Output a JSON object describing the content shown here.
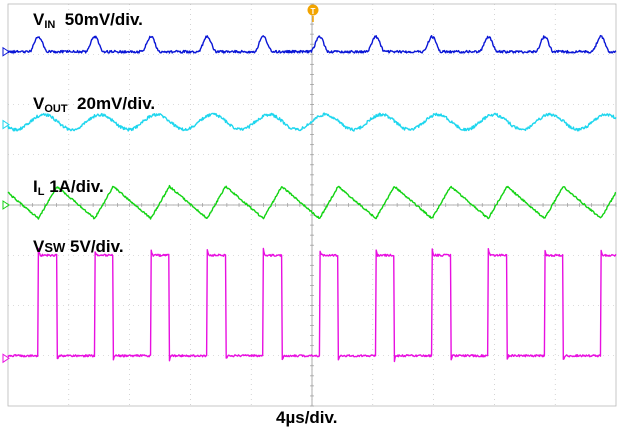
{
  "chart_data": {
    "type": "line",
    "title": "",
    "grid": true,
    "grid_divisions": {
      "x": 10,
      "y": 8
    },
    "xlabel": "4µs/div.",
    "x_unit": "µs",
    "xlim": [
      0,
      40
    ],
    "trigger_marker": "T",
    "colors": {
      "grid": "#b9b9b9",
      "vin": "#0a16d6",
      "vout": "#1ed6ee",
      "il": "#12d312",
      "vsw": "#e80fe0"
    },
    "series": [
      {
        "key": "vin",
        "label_main": "V",
        "label_sub": "IN",
        "label_scale": "50mV/div.",
        "scale_value": 50,
        "scale_unit": "mV/div",
        "waveform": "periodic-spike",
        "period_us": 3.7,
        "first_edge_us": 2.0,
        "baseline_div": 0.95,
        "spike_height_div": 0.3,
        "spike_width_us": 0.6,
        "marker_div": 0.95,
        "noise_div": 0.025
      },
      {
        "key": "vout",
        "label_main": "V",
        "label_sub": "OUT",
        "label_scale": "20mV/div.",
        "scale_value": 20,
        "scale_unit": "mV/div",
        "waveform": "sine",
        "period_us": 3.7,
        "first_edge_us": 2.0,
        "baseline_div": 2.35,
        "amplitude_div": 0.15,
        "marker_div": 2.4,
        "noise_div": 0.03
      },
      {
        "key": "il",
        "label_main": "I",
        "label_sub": "L",
        "label_scale": "1A/div.",
        "scale_value": 1,
        "scale_unit": "A/div",
        "waveform": "triangle",
        "period_us": 3.7,
        "first_edge_us": 2.0,
        "rise_fraction": 0.33,
        "baseline_div": 3.95,
        "amplitude_div": 0.32,
        "marker_div": 4.0,
        "noise_div": 0.018
      },
      {
        "key": "vsw",
        "label_main": "V",
        "label_sub": "SW",
        "label_scale": "5V/div.",
        "scale_value": 5,
        "scale_unit": "V/div",
        "waveform": "square",
        "period_us": 3.7,
        "first_edge_us": 2.0,
        "duty": 0.33,
        "high_div": 5.0,
        "low_div": 7.0,
        "overshoot_div": 0.12,
        "marker_div": 7.05,
        "noise_div": 0.02
      }
    ]
  }
}
